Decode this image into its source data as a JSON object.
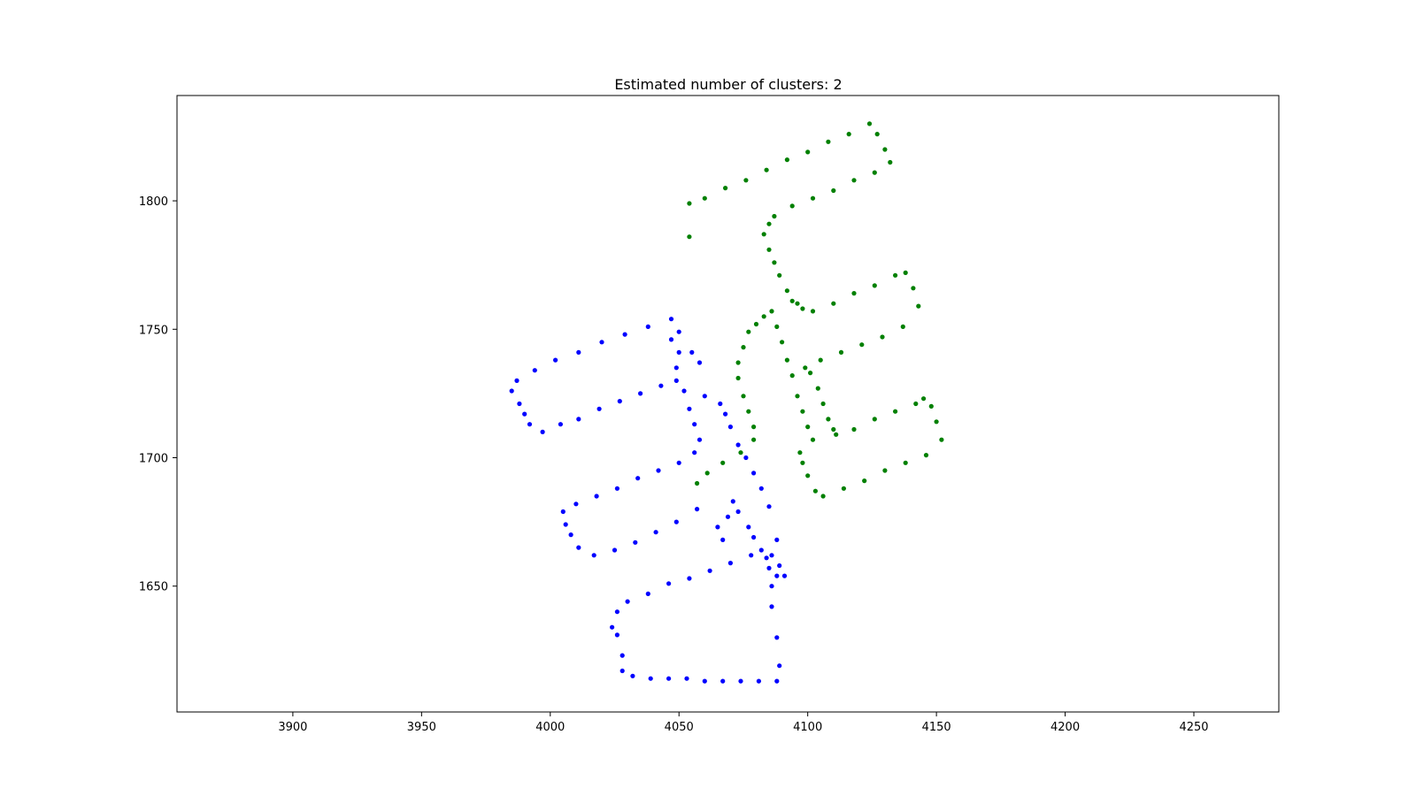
{
  "chart_data": {
    "type": "scatter",
    "title": "Estimated number of clusters: 2",
    "xlabel": "",
    "ylabel": "",
    "xlim": [
      3855,
      4283
    ],
    "ylim": [
      1601,
      1841
    ],
    "xticks": [
      3900,
      3950,
      4000,
      4050,
      4100,
      4150,
      4200,
      4250
    ],
    "yticks": [
      1650,
      1700,
      1750,
      1800
    ],
    "grid": false,
    "legend": "none",
    "series": [
      {
        "color": "#0000ff",
        "x": [
          4047,
          4038,
          4029,
          4020,
          4011,
          4002,
          3994,
          3987,
          3985,
          3988,
          3990,
          3992,
          3997,
          4004,
          4011,
          4019,
          4027,
          4035,
          4043,
          4049,
          4049,
          4050,
          4047,
          4050,
          4055,
          4058,
          4060,
          4066,
          4068,
          4070,
          4073,
          4076,
          4079,
          4082,
          4085,
          4088,
          4091,
          4089,
          4086,
          4086,
          4088,
          4089,
          4088,
          4081,
          4074,
          4067,
          4060,
          4053,
          4046,
          4039,
          4032,
          4028,
          4028,
          4026,
          4024,
          4026,
          4030,
          4038,
          4046,
          4054,
          4062,
          4070,
          4078,
          4086,
          4088,
          4085,
          4084,
          4082,
          4079,
          4077,
          4073,
          4071,
          4069,
          4067,
          4065,
          4057,
          4049,
          4041,
          4033,
          4025,
          4017,
          4011,
          4008,
          4006,
          4005,
          4010,
          4018,
          4026,
          4034,
          4042,
          4050,
          4056,
          4058,
          4056,
          4054,
          4052
        ],
        "y": [
          1754,
          1751,
          1748,
          1745,
          1741,
          1738,
          1734,
          1730,
          1726,
          1721,
          1717,
          1713,
          1710,
          1713,
          1715,
          1719,
          1722,
          1725,
          1728,
          1730,
          1735,
          1741,
          1746,
          1749,
          1741,
          1737,
          1724,
          1721,
          1717,
          1712,
          1705,
          1700,
          1694,
          1688,
          1681,
          1668,
          1654,
          1658,
          1650,
          1642,
          1630,
          1619,
          1613,
          1613,
          1613,
          1613,
          1613,
          1614,
          1614,
          1614,
          1615,
          1617,
          1623,
          1631,
          1634,
          1640,
          1644,
          1647,
          1651,
          1653,
          1656,
          1659,
          1662,
          1662,
          1654,
          1657,
          1661,
          1664,
          1669,
          1673,
          1679,
          1683,
          1677,
          1668,
          1673,
          1680,
          1675,
          1671,
          1667,
          1664,
          1662,
          1665,
          1670,
          1674,
          1679,
          1682,
          1685,
          1688,
          1692,
          1695,
          1698,
          1702,
          1707,
          1713,
          1719,
          1726
        ]
      },
      {
        "color": "#008000",
        "x": [
          4054,
          4060,
          4068,
          4076,
          4084,
          4092,
          4100,
          4108,
          4116,
          4124,
          4127,
          4130,
          4132,
          4126,
          4118,
          4110,
          4102,
          4094,
          4087,
          4085,
          4083,
          4085,
          4087,
          4089,
          4092,
          4094,
          4096,
          4098,
          4102,
          4110,
          4118,
          4126,
          4134,
          4138,
          4141,
          4143,
          4137,
          4129,
          4121,
          4113,
          4105,
          4099,
          4101,
          4104,
          4106,
          4108,
          4110,
          4111,
          4118,
          4126,
          4134,
          4142,
          4145,
          4148,
          4150,
          4152,
          4146,
          4138,
          4130,
          4122,
          4114,
          4106,
          4103,
          4100,
          4098,
          4097,
          4102,
          4100,
          4098,
          4096,
          4094,
          4092,
          4090,
          4088,
          4086,
          4083,
          4080,
          4077,
          4075,
          4073,
          4073,
          4075,
          4077,
          4079,
          4079,
          4074,
          4067,
          4061,
          4057,
          4054
        ],
        "y": [
          1799,
          1801,
          1805,
          1808,
          1812,
          1816,
          1819,
          1823,
          1826,
          1830,
          1826,
          1820,
          1815,
          1811,
          1808,
          1804,
          1801,
          1798,
          1794,
          1791,
          1787,
          1781,
          1776,
          1771,
          1765,
          1761,
          1760,
          1758,
          1757,
          1760,
          1764,
          1767,
          1771,
          1772,
          1766,
          1759,
          1751,
          1747,
          1744,
          1741,
          1738,
          1735,
          1733,
          1727,
          1721,
          1715,
          1711,
          1709,
          1711,
          1715,
          1718,
          1721,
          1723,
          1720,
          1714,
          1707,
          1701,
          1698,
          1695,
          1691,
          1688,
          1685,
          1687,
          1693,
          1698,
          1702,
          1707,
          1712,
          1718,
          1724,
          1732,
          1738,
          1745,
          1751,
          1757,
          1755,
          1752,
          1749,
          1743,
          1737,
          1731,
          1724,
          1718,
          1712,
          1707,
          1702,
          1698,
          1694,
          1690,
          1786
        ]
      }
    ]
  }
}
